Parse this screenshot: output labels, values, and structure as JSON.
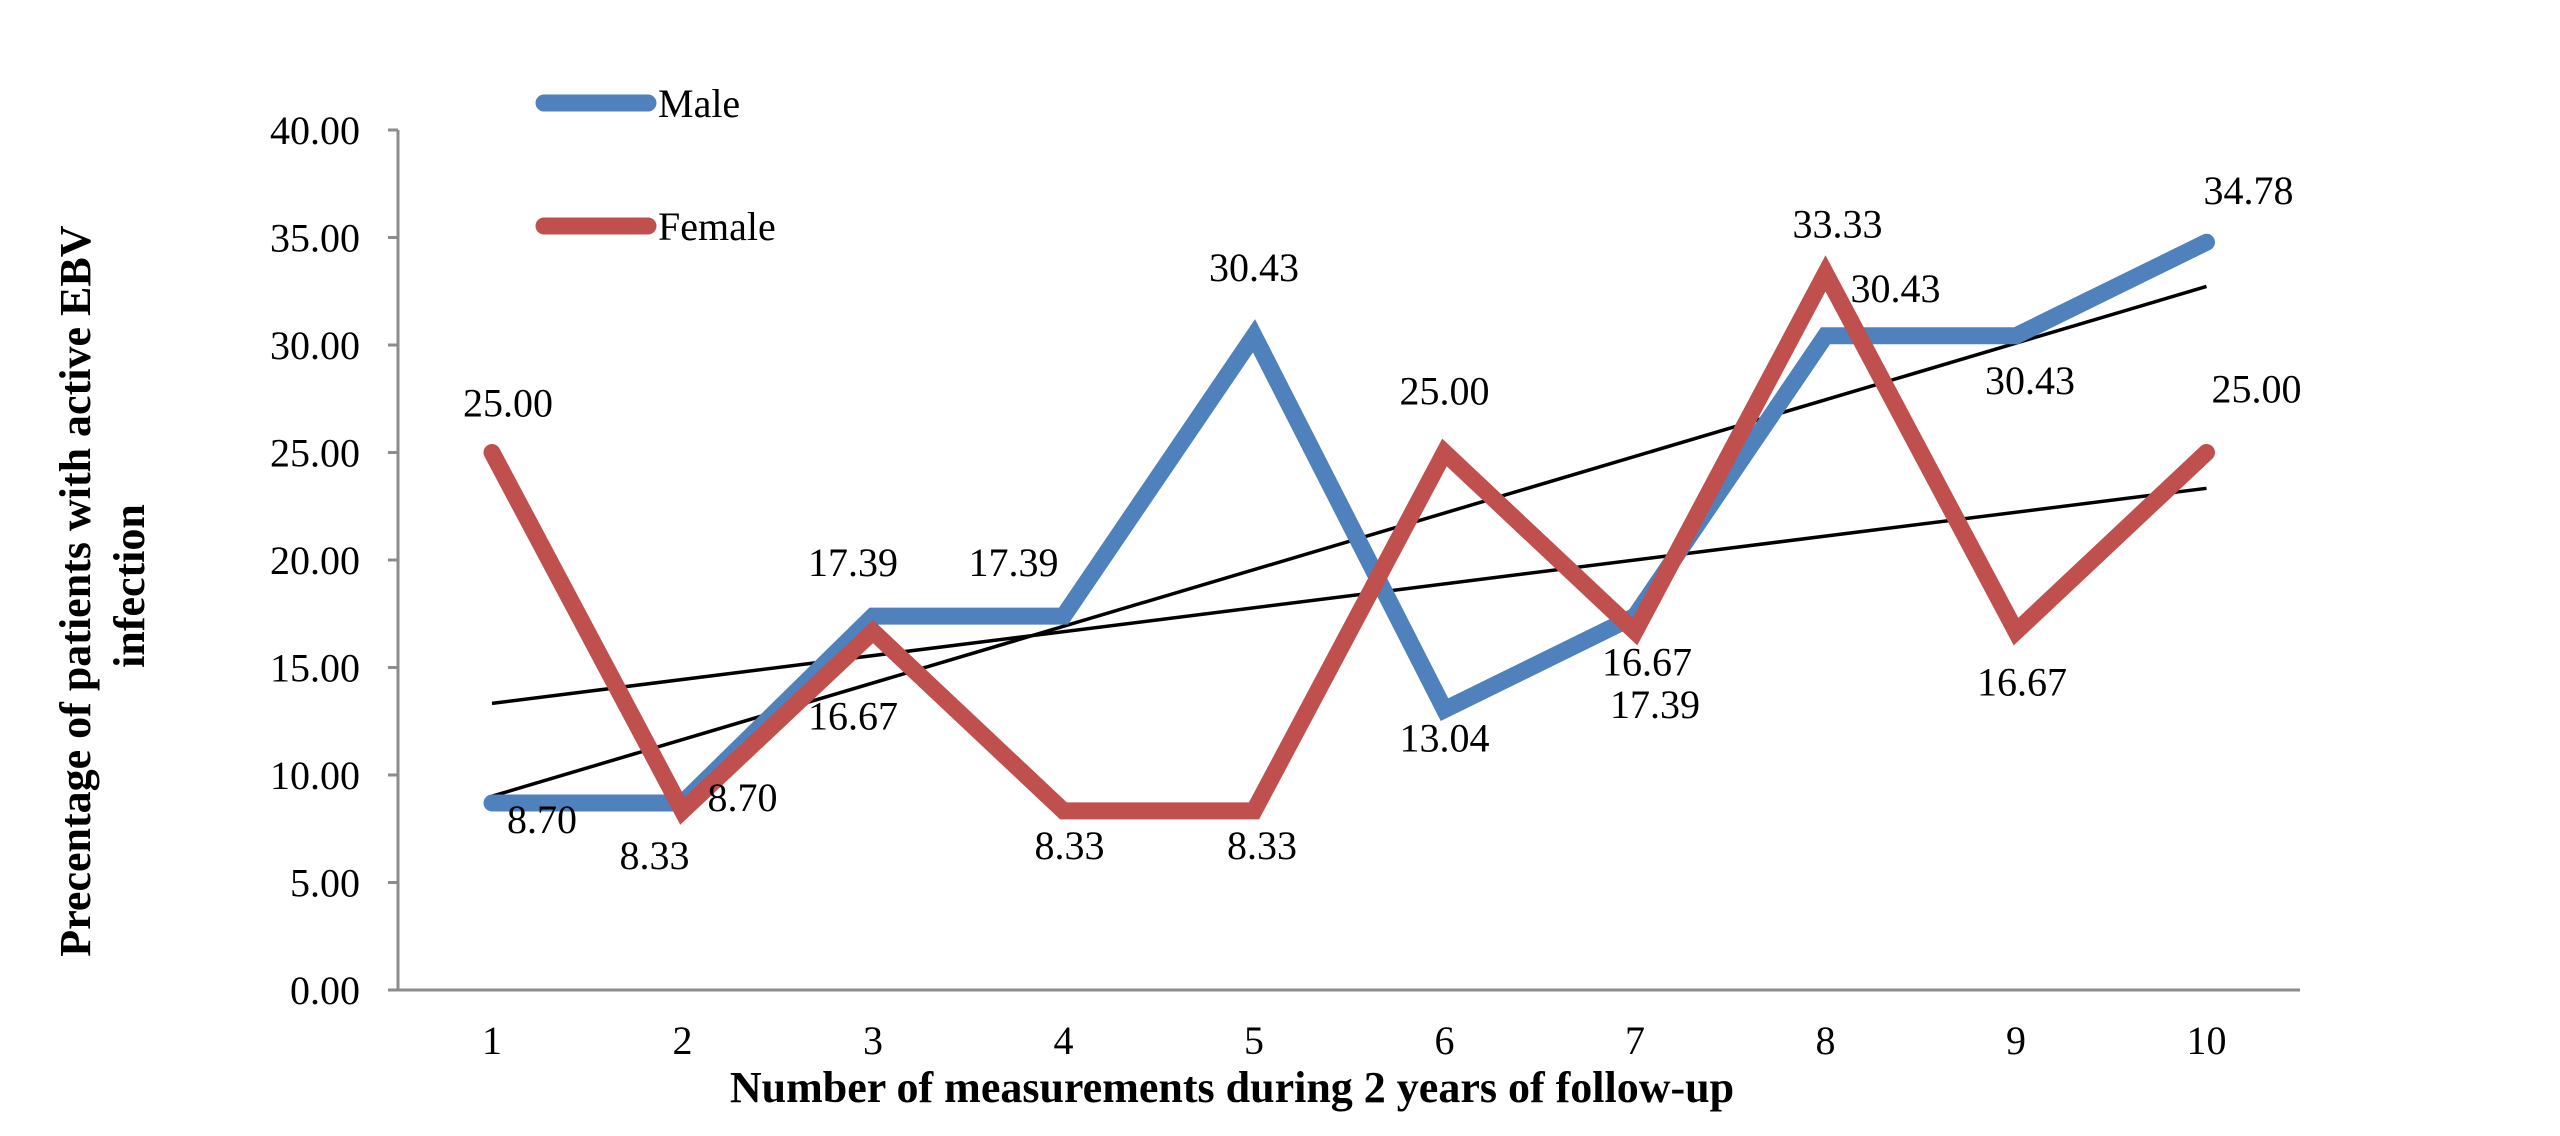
{
  "chart_data": {
    "type": "line",
    "title": "",
    "xlabel": "Number of measurements during 2 years of follow-up",
    "ylabel_line1": "Precentage of patients with active EBV",
    "ylabel_line2": "infection",
    "x": [
      1,
      2,
      3,
      4,
      5,
      6,
      7,
      8,
      9,
      10
    ],
    "x_tick_labels": [
      "1",
      "2",
      "3",
      "4",
      "5",
      "6",
      "7",
      "8",
      "9",
      "10"
    ],
    "y_ticks": [
      0,
      5,
      10,
      15,
      20,
      25,
      30,
      35,
      40
    ],
    "y_tick_labels": [
      "0.00",
      "5.00",
      "10.00",
      "15.00",
      "20.00",
      "25.00",
      "30.00",
      "35.00",
      "40.00"
    ],
    "ylim": [
      0,
      40
    ],
    "grid": false,
    "legend_position": "top-left",
    "series": [
      {
        "name": "Male",
        "color": "#4F81BD",
        "values": [
          8.7,
          8.7,
          17.39,
          17.39,
          30.43,
          13.04,
          17.39,
          30.43,
          30.43,
          34.78
        ],
        "value_labels": [
          "8.70",
          "8.70",
          "17.39",
          "17.39",
          "30.43",
          "13.04",
          "17.39",
          "30.43",
          "30.43",
          "34.78"
        ]
      },
      {
        "name": "Female",
        "color": "#C0504D",
        "values": [
          25.0,
          8.33,
          16.67,
          8.33,
          8.33,
          25.0,
          16.67,
          33.33,
          16.67,
          25.0
        ],
        "value_labels": [
          "25.00",
          "8.33",
          "16.67",
          "8.33",
          "8.33",
          "25.00",
          "16.67",
          "33.33",
          "16.67",
          "25.00"
        ]
      }
    ],
    "trendlines": [
      {
        "series": "Male",
        "type": "linear",
        "color": "#000000"
      },
      {
        "series": "Female",
        "type": "linear",
        "color": "#000000"
      }
    ]
  }
}
